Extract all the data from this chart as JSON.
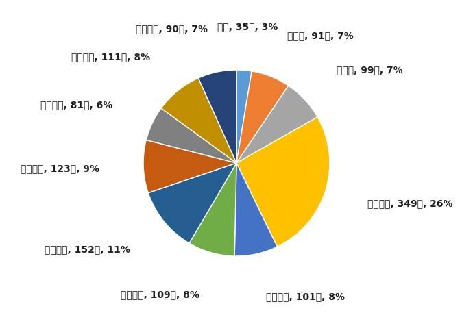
{
  "labels": [
    "０歳, 35人, 3%",
    "１歳～, 91人, 7%",
    "５歳～, 99人, 7%",
    "１０歳～, 349人, 26%",
    "２０歳～, 101人, 8%",
    "３０歳～, 109人, 8%",
    "４０歳～, 152人, 11%",
    "５０歳～, 123人, 9%",
    "６０歳～, 81人, 6%",
    "７０歳～, 111人, 8%",
    "８０歳～, 90人, 7%"
  ],
  "values": [
    35,
    91,
    99,
    349,
    101,
    109,
    152,
    123,
    81,
    111,
    90
  ],
  "colors": [
    "#5B9BD5",
    "#ED7D31",
    "#A5A5A5",
    "#FFC000",
    "#4472C4",
    "#70AD47",
    "#255E91",
    "#C55A11",
    "#808080",
    "#BF8F00",
    "#264478"
  ],
  "startangle": 90,
  "figsize": [
    6.9,
    4.76
  ],
  "dpi": 100,
  "label_fontsize": 10,
  "label_fontweight": "bold",
  "background_color": "#FFFFFF"
}
